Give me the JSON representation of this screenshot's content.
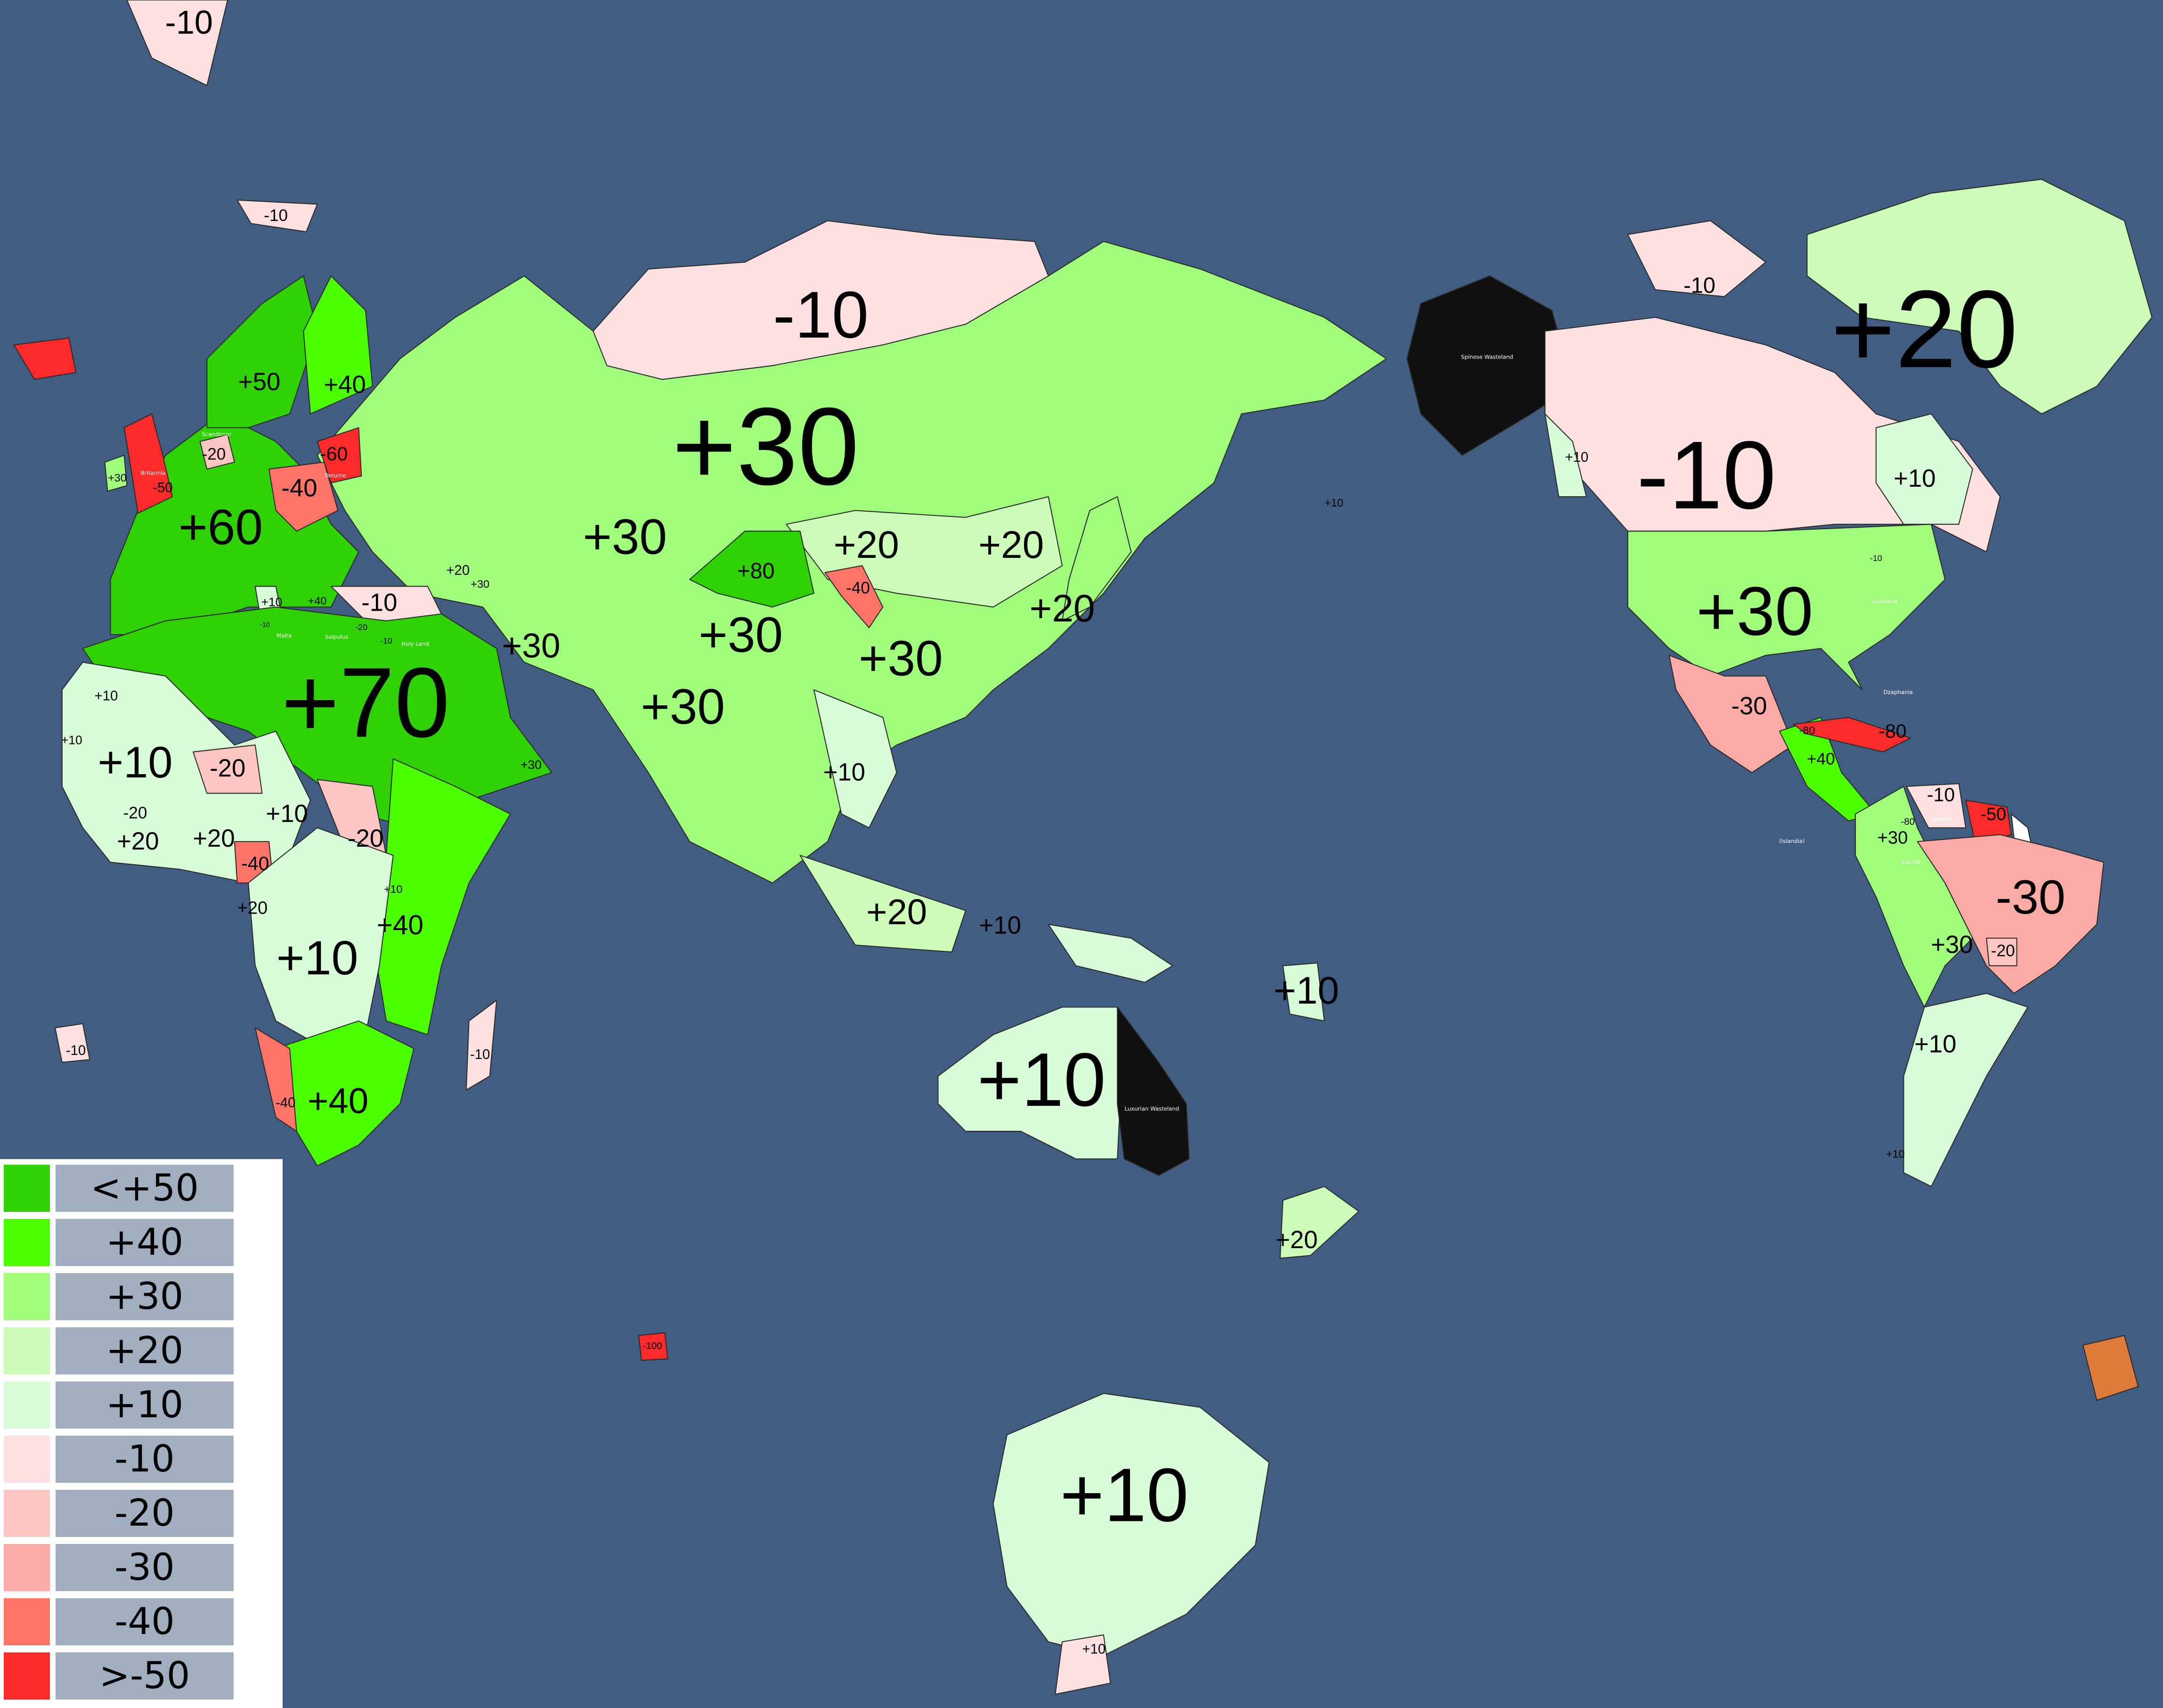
{
  "legend": {
    "items": [
      {
        "key": "p50",
        "label": "<+50",
        "color": "#2fd100"
      },
      {
        "key": "p40",
        "label": "+40",
        "color": "#4cff00"
      },
      {
        "key": "p30",
        "label": "+30",
        "color": "#a0fd7c"
      },
      {
        "key": "p20",
        "label": "+20",
        "color": "#ccfcb8"
      },
      {
        "key": "p10",
        "label": "+10",
        "color": "#d8fcd8"
      },
      {
        "key": "m10",
        "label": "-10",
        "color": "#fde0e0"
      },
      {
        "key": "m20",
        "label": "-20",
        "color": "#fcc6c2"
      },
      {
        "key": "m30",
        "label": "-30",
        "color": "#fcaaa5"
      },
      {
        "key": "m40",
        "label": "-40",
        "color": "#ff7368"
      },
      {
        "key": "m50",
        "label": ">-50",
        "color": "#ff2a2a"
      }
    ]
  },
  "colors": {
    "ocean": "#425d82",
    "wasteland": "#101010"
  },
  "values": {
    "russia": "-10",
    "eurasia": "+30",
    "greenland": "+20",
    "canada": "-10",
    "middle_east": "+70",
    "europe": "+60",
    "usa": "+30",
    "australia": "+10",
    "antarctica": "+10",
    "central_asia": "+30",
    "tibet": "+30",
    "china": "+30",
    "india": "+30",
    "mongolia": "+20",
    "manchuria": "+20",
    "korea": "+20",
    "xinjiang": "+80",
    "gansu": "-40",
    "persia": "+30",
    "west_africa": "+10",
    "east_africa": "+40",
    "central_africa": "+10",
    "south_africa": "+40",
    "indonesia": "+20",
    "indochina": "+10",
    "new_guinea": "+10",
    "pacific": "+10",
    "new_zealand": "+20",
    "brazil": "-30",
    "andes_south": "+30",
    "southern_cone": "+10",
    "mexico": "-30",
    "caribbean": "-80",
    "central_america": "+40",
    "venezuela": "-10",
    "guyana": "-50",
    "colombia": "+30",
    "colombia_spots": "-80",
    "central_america_spots": "-80",
    "paraguay": "-20",
    "scandinavia": "+50",
    "finland": "+40",
    "baltic": "-60",
    "poland": "-40",
    "britain": "-50",
    "ireland": "+30",
    "denmark": "-20",
    "turkey": "-10",
    "caucasus": "+20",
    "caucasus2": "+30",
    "italy": "+10",
    "greece": "+40",
    "malta": "-10",
    "cyprus": "-20",
    "holy_land": "-10",
    "oman": "+30",
    "mauritania": "+10",
    "senegal": "+10",
    "sahel": "-20",
    "guinea": "-20",
    "ivory": "+20",
    "nigeria": "+20",
    "chad": "+10",
    "sudan": "-20",
    "cameroon": "-40",
    "gabon": "+20",
    "uganda": "+10",
    "namibia": "-40",
    "svalbard": "-10",
    "franz_josef": "-10",
    "arctic_canada": "-10",
    "quebec": "+10",
    "bc": "+10",
    "hawaii": "+10",
    "south_georgia": "+10",
    "madagascar": "-10",
    "st_helena": "-10",
    "louisiana": "-10",
    "chile": "+10",
    "pitcairn": "-100"
  },
  "names": {
    "spinese": "Spinese Wasteland",
    "luxurian": "Luxurian Wasteland",
    "britannia": "Britannia",
    "scandimar": "Scandimar",
    "tanume": "Tanume",
    "malta": "Malta",
    "saipulus": "Saipulus",
    "holy_land": "Holy Land",
    "louisiana": "Louisiana",
    "dzaphania": "Dzaphania",
    "lustland": "Lustland",
    "itachia": "Itachia",
    "islandia": "(Islandia)"
  }
}
